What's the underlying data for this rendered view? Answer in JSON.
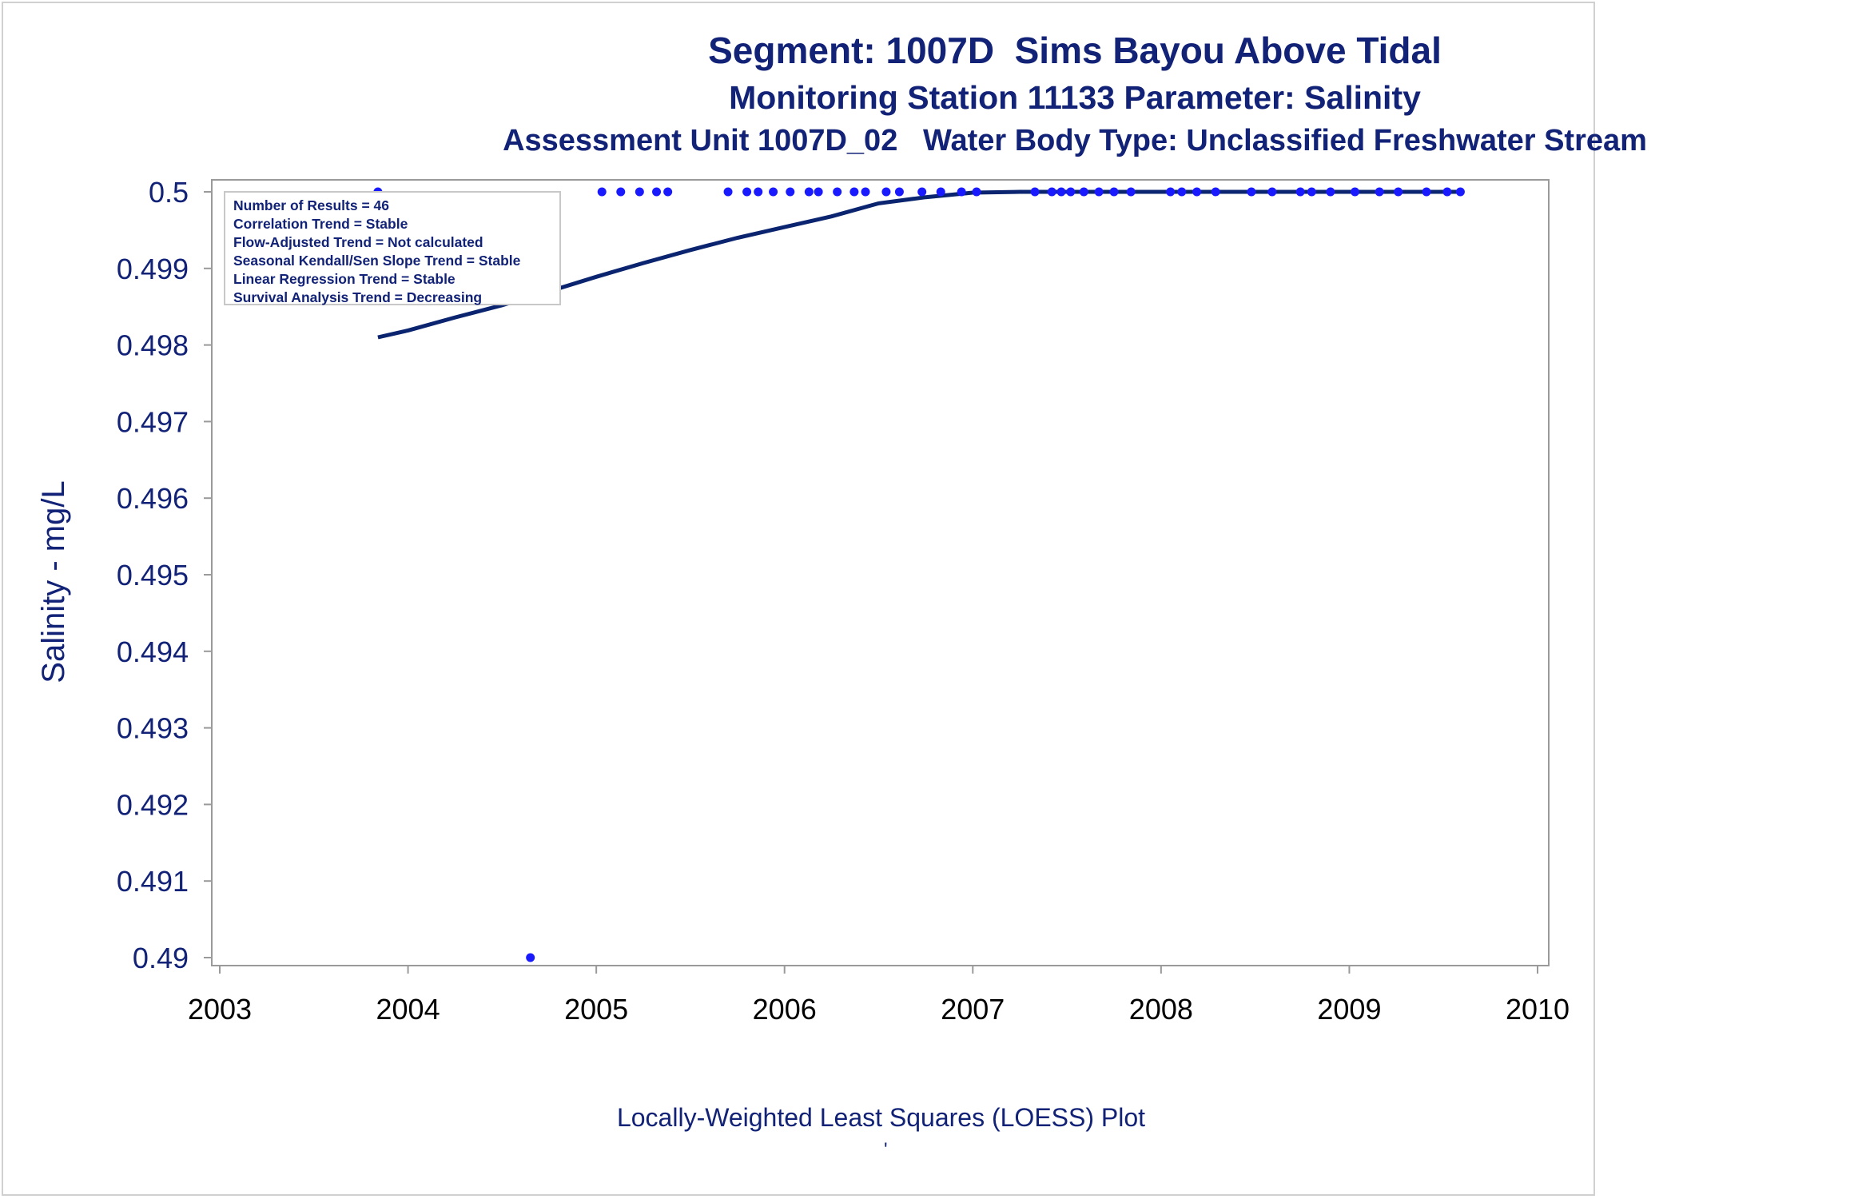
{
  "titles": {
    "line1": "Segment: 1007D  Sims Bayou Above Tidal",
    "line2": "Monitoring Station 11133 Parameter: Salinity",
    "line3": "Assessment Unit 1007D_02   Water Body Type: Unclassified Freshwater Stream"
  },
  "legend": [
    "Number of Results = 46",
    "Correlation Trend = Stable",
    "Flow-Adjusted Trend = Not calculated",
    "Seasonal Kendall/Sen Slope Trend = Stable",
    "Linear Regression Trend = Stable",
    "Survival Analysis Trend = Decreasing"
  ],
  "footnote": "Locally-Weighted Least Squares (LOESS) Plot",
  "footnote_mark": "'",
  "colors": {
    "text": "#112277",
    "points": "#1a1aff",
    "line": "#0a2470",
    "frame": "#9a9a9a"
  },
  "chart_data": {
    "type": "scatter",
    "ylabel": "Salinity - mg/L",
    "xlabel": "",
    "xlim": [
      2003,
      2010
    ],
    "ylim": [
      0.49,
      0.5
    ],
    "x_ticks": [
      "2003",
      "2004",
      "2005",
      "2006",
      "2007",
      "2008",
      "2009",
      "2010"
    ],
    "y_ticks": [
      "0.49",
      "0.491",
      "0.492",
      "0.493",
      "0.494",
      "0.495",
      "0.496",
      "0.497",
      "0.498",
      "0.499",
      "0.5"
    ],
    "points": [
      {
        "x": 2003.84,
        "y": 0.5
      },
      {
        "x": 2004.65,
        "y": 0.49
      },
      {
        "x": 2005.03,
        "y": 0.5
      },
      {
        "x": 2005.13,
        "y": 0.5
      },
      {
        "x": 2005.23,
        "y": 0.5
      },
      {
        "x": 2005.32,
        "y": 0.5
      },
      {
        "x": 2005.38,
        "y": 0.5
      },
      {
        "x": 2005.7,
        "y": 0.5
      },
      {
        "x": 2005.8,
        "y": 0.5
      },
      {
        "x": 2005.86,
        "y": 0.5
      },
      {
        "x": 2005.94,
        "y": 0.5
      },
      {
        "x": 2006.03,
        "y": 0.5
      },
      {
        "x": 2006.13,
        "y": 0.5
      },
      {
        "x": 2006.18,
        "y": 0.5
      },
      {
        "x": 2006.28,
        "y": 0.5
      },
      {
        "x": 2006.37,
        "y": 0.5
      },
      {
        "x": 2006.43,
        "y": 0.5
      },
      {
        "x": 2006.54,
        "y": 0.5
      },
      {
        "x": 2006.61,
        "y": 0.5
      },
      {
        "x": 2006.73,
        "y": 0.5
      },
      {
        "x": 2006.83,
        "y": 0.5
      },
      {
        "x": 2006.94,
        "y": 0.5
      },
      {
        "x": 2007.02,
        "y": 0.5
      },
      {
        "x": 2007.33,
        "y": 0.5
      },
      {
        "x": 2007.42,
        "y": 0.5
      },
      {
        "x": 2007.47,
        "y": 0.5
      },
      {
        "x": 2007.52,
        "y": 0.5
      },
      {
        "x": 2007.59,
        "y": 0.5
      },
      {
        "x": 2007.67,
        "y": 0.5
      },
      {
        "x": 2007.75,
        "y": 0.5
      },
      {
        "x": 2007.84,
        "y": 0.5
      },
      {
        "x": 2008.05,
        "y": 0.5
      },
      {
        "x": 2008.11,
        "y": 0.5
      },
      {
        "x": 2008.19,
        "y": 0.5
      },
      {
        "x": 2008.29,
        "y": 0.5
      },
      {
        "x": 2008.48,
        "y": 0.5
      },
      {
        "x": 2008.59,
        "y": 0.5
      },
      {
        "x": 2008.74,
        "y": 0.5
      },
      {
        "x": 2008.8,
        "y": 0.5
      },
      {
        "x": 2008.9,
        "y": 0.5
      },
      {
        "x": 2009.03,
        "y": 0.5
      },
      {
        "x": 2009.16,
        "y": 0.5
      },
      {
        "x": 2009.26,
        "y": 0.5
      },
      {
        "x": 2009.41,
        "y": 0.5
      },
      {
        "x": 2009.52,
        "y": 0.5
      },
      {
        "x": 2009.59,
        "y": 0.5
      }
    ],
    "loess_curve": [
      {
        "x": 2003.84,
        "y": 0.4981
      },
      {
        "x": 2004.0,
        "y": 0.49819
      },
      {
        "x": 2004.25,
        "y": 0.49836
      },
      {
        "x": 2004.5,
        "y": 0.49852
      },
      {
        "x": 2004.75,
        "y": 0.4987
      },
      {
        "x": 2005.0,
        "y": 0.49889
      },
      {
        "x": 2005.25,
        "y": 0.49907
      },
      {
        "x": 2005.5,
        "y": 0.49924
      },
      {
        "x": 2005.75,
        "y": 0.4994
      },
      {
        "x": 2006.0,
        "y": 0.49954
      },
      {
        "x": 2006.25,
        "y": 0.49968
      },
      {
        "x": 2006.5,
        "y": 0.49985
      },
      {
        "x": 2006.75,
        "y": 0.49993
      },
      {
        "x": 2007.0,
        "y": 0.49999
      },
      {
        "x": 2007.25,
        "y": 0.5
      },
      {
        "x": 2009.59,
        "y": 0.5
      }
    ]
  }
}
